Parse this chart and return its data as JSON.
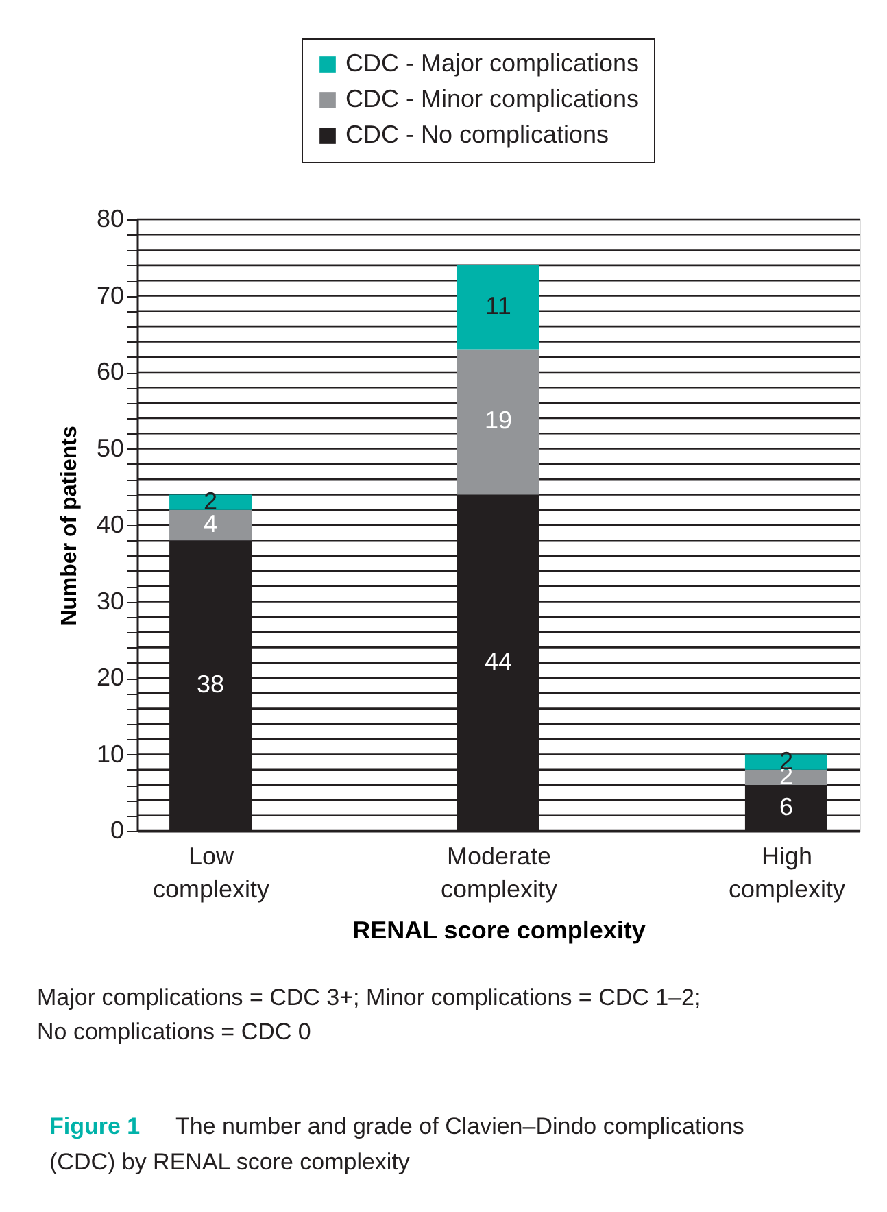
{
  "chart_data": {
    "type": "bar",
    "stacked": true,
    "xlabel": "RENAL score complexity",
    "ylabel": "Number of patients",
    "categories": [
      "Low complexity",
      "Moderate complexity",
      "High complexity"
    ],
    "series": [
      {
        "name": "CDC - No complications",
        "color": "#231f20",
        "values": [
          38,
          44,
          6
        ]
      },
      {
        "name": "CDC - Minor complications",
        "color": "#939598",
        "values": [
          4,
          19,
          2
        ]
      },
      {
        "name": "CDC - Major complications",
        "color": "#00b2a9",
        "values": [
          2,
          11,
          2
        ]
      }
    ],
    "data_labels": true,
    "legend": "top",
    "grid": "y",
    "ylim": [
      0,
      80
    ],
    "yticks": [
      0,
      {
        "value": 2,
        "label": null
      },
      {
        "value": 4,
        "label": null
      },
      {
        "value": 6,
        "label": null
      },
      {
        "value": 8,
        "label": null
      },
      10,
      {
        "value": 12,
        "label": null
      },
      {
        "value": 14,
        "label": null
      },
      {
        "value": 16,
        "label": null
      },
      {
        "value": 18,
        "label": null
      },
      20,
      {
        "value": 22,
        "label": null
      },
      {
        "value": 24,
        "label": null
      },
      {
        "value": 26,
        "label": null
      },
      {
        "value": 28,
        "label": null
      },
      30,
      {
        "value": 32,
        "label": null
      },
      {
        "value": 34,
        "label": null
      },
      {
        "value": 36,
        "label": null
      },
      {
        "value": 38,
        "label": null
      },
      40,
      {
        "value": 42,
        "label": null
      },
      {
        "value": 44,
        "label": null
      },
      {
        "value": 46,
        "label": null
      },
      {
        "value": 48,
        "label": null
      },
      50,
      {
        "value": 52,
        "label": null
      },
      {
        "value": 54,
        "label": null
      },
      {
        "value": 56,
        "label": null
      },
      {
        "value": 58,
        "label": null
      },
      60,
      {
        "value": 62,
        "label": null
      },
      {
        "value": 64,
        "label": null
      },
      {
        "value": 66,
        "label": null
      },
      {
        "value": 68,
        "label": null
      },
      70,
      {
        "value": 72,
        "label": null
      },
      {
        "value": 74,
        "label": null
      },
      {
        "value": 76,
        "label": null
      },
      {
        "value": 78,
        "label": null
      },
      80
    ],
    "annotations": [
      "Major complications = CDC 3+; Minor complications = CDC 1–2; No complications = CDC 0",
      "Figure 1",
      "The number and grade of Clavien–Dindo complications (CDC) by RENAL score complexity"
    ]
  }
}
